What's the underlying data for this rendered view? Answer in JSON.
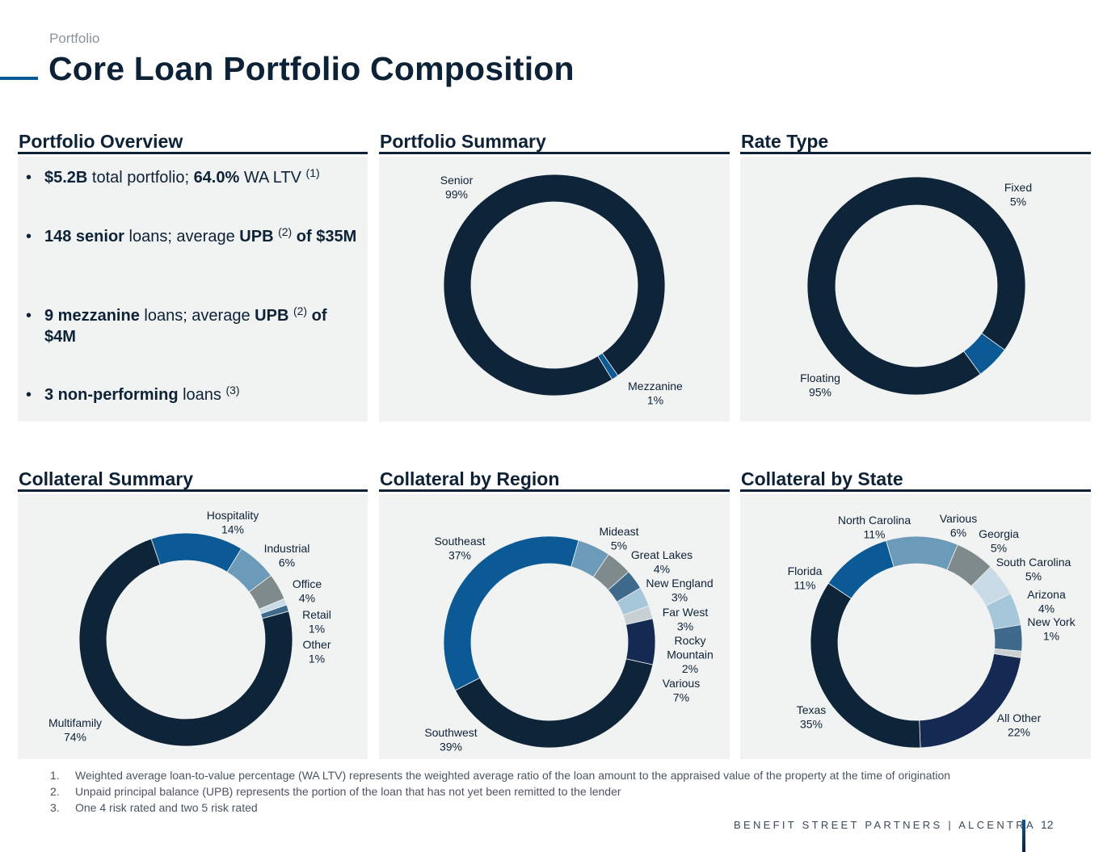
{
  "header": {
    "eyebrow": "Portfolio",
    "title": "Core Loan Portfolio Composition"
  },
  "panels": {
    "overview": "Portfolio Overview",
    "summary": "Portfolio Summary",
    "rate": "Rate Type",
    "collateral": "Collateral Summary",
    "region": "Collateral by Region",
    "state": "Collateral by State"
  },
  "bullets": [
    {
      "b1": "$5.2B",
      "t1": " total portfolio; ",
      "b2": "64.0%",
      "t2": " WA LTV ",
      "sup": "(1)",
      "b3": "",
      "t3": ""
    },
    {
      "b1": "148 senior",
      "t1": " loans; average ",
      "b2": "UPB",
      "t2": " ",
      "sup": "(2)",
      "b3": " of $35M",
      "t3": ""
    },
    {
      "b1": "9 mezzanine",
      "t1": " loans; average ",
      "b2": "UPB",
      "t2": " ",
      "sup": "(2)",
      "b3": " of $4M",
      "t3": ""
    },
    {
      "b1": "3 non-performing",
      "t1": " loans ",
      "b2": "",
      "t2": "",
      "sup": "(3)",
      "b3": "",
      "t3": ""
    }
  ],
  "chart_data": [
    {
      "type": "pie",
      "title": "Portfolio Summary",
      "categories": [
        "Senior",
        "Mezzanine"
      ],
      "values": [
        99,
        1
      ],
      "labels": [
        "99%",
        "1%"
      ],
      "colors": [
        "#0e2438",
        "#0b5a96"
      ]
    },
    {
      "type": "pie",
      "title": "Rate Type",
      "categories": [
        "Floating",
        "Fixed"
      ],
      "values": [
        95,
        5
      ],
      "labels": [
        "95%",
        "5%"
      ],
      "colors": [
        "#0e2438",
        "#0b5a96"
      ]
    },
    {
      "type": "pie",
      "title": "Collateral Summary",
      "categories": [
        "Hospitality",
        "Industrial",
        "Office",
        "Retail",
        "Other",
        "Multifamily"
      ],
      "values": [
        14,
        6,
        4,
        1,
        1,
        74
      ],
      "labels": [
        "14%",
        "6%",
        "4%",
        "1%",
        "1%",
        "74%"
      ],
      "colors": [
        "#0b5a96",
        "#6c9ab9",
        "#7f8a8c",
        "#c9dbe6",
        "#3f6a8c",
        "#0e2438"
      ]
    },
    {
      "type": "pie",
      "title": "Collateral by Region",
      "categories": [
        "Mideast",
        "Great Lakes",
        "New England",
        "Far West",
        "Rocky Mountain",
        "Various",
        "Southwest",
        "Southeast"
      ],
      "values": [
        5,
        4,
        3,
        3,
        2,
        7,
        39,
        37
      ],
      "labels": [
        "5%",
        "4%",
        "3%",
        "3%",
        "2%",
        "7%",
        "39%",
        "37%"
      ],
      "colors": [
        "#6c9ab9",
        "#7f8a8c",
        "#3f6a8c",
        "#a6c7da",
        "#c8d0d3",
        "#142a52",
        "#0e2438",
        "#0b5a96"
      ]
    },
    {
      "type": "pie",
      "title": "Collateral by State",
      "categories": [
        "Various",
        "Georgia",
        "South Carolina",
        "Arizona",
        "New York",
        "All Other",
        "Texas",
        "Florida",
        "North Carolina"
      ],
      "values": [
        6,
        5,
        5,
        4,
        1,
        22,
        35,
        11,
        11
      ],
      "labels": [
        "6%",
        "5%",
        "5%",
        "4%",
        "1%",
        "22%",
        "35%",
        "11%",
        "11%"
      ],
      "colors": [
        "#7f8a8c",
        "#c9dbe6",
        "#a6c7da",
        "#3f6a8c",
        "#c8d0d3",
        "#142a52",
        "#0e2438",
        "#0b5a96",
        "#6c9ab9"
      ]
    }
  ],
  "footnotes": [
    {
      "num": "1.",
      "text": "Weighted average loan-to-value percentage (WA LTV) represents the weighted average ratio of the loan amount to the appraised value of the property at the time of origination"
    },
    {
      "num": "2.",
      "text": "Unpaid principal balance (UPB) represents the portion of the loan that has not yet been remitted to the lender"
    },
    {
      "num": "3.",
      "text": "One 4 risk rated and two 5 risk rated"
    }
  ],
  "footer": {
    "brand": "BENEFIT STREET PARTNERS | ALCENTRA",
    "page": "12"
  }
}
